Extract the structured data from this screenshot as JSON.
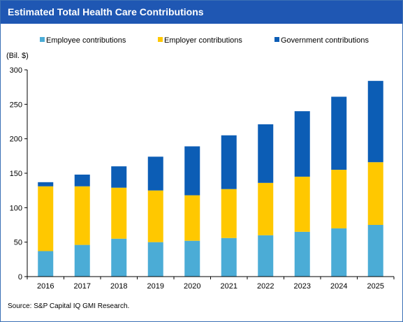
{
  "chart_data": {
    "type": "bar",
    "stacked": true,
    "title": "Estimated Total Health Care Contributions",
    "ylabel": "(Bil. $)",
    "ylim": [
      0,
      300
    ],
    "yticks": [
      "0",
      "50",
      "100",
      "150",
      "200",
      "250",
      "300"
    ],
    "grid": false,
    "legend_position": "top",
    "categories": [
      "2016",
      "2017",
      "2018",
      "2019",
      "2020",
      "2021",
      "2022",
      "2023",
      "2024",
      "2025"
    ],
    "series": [
      {
        "name": "Employee contributions",
        "color": "#4bacd6",
        "values": [
          37,
          46,
          55,
          50,
          52,
          56,
          60,
          65,
          70,
          75
        ]
      },
      {
        "name": "Employer contributions",
        "color": "#ffc800",
        "values": [
          94,
          85,
          74,
          75,
          66,
          71,
          76,
          80,
          85,
          91
        ]
      },
      {
        "name": "Government contributions",
        "color": "#0c5db5",
        "values": [
          6,
          17,
          31,
          49,
          71,
          78,
          85,
          95,
          106,
          118
        ]
      }
    ],
    "source": "Source: S&P Capital IQ GMI Research."
  }
}
